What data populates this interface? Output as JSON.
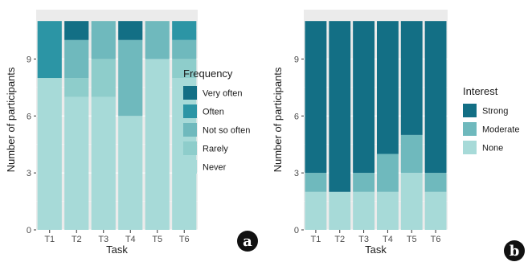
{
  "chart_data": [
    {
      "type": "bar",
      "stacked": true,
      "badge": "a",
      "xlabel": "Task",
      "ylabel": "Number of participants",
      "ylim": [
        0,
        11.6
      ],
      "yticks": [
        0,
        3,
        6,
        9
      ],
      "categories": [
        "T1",
        "T2",
        "T3",
        "T4",
        "T5",
        "T6"
      ],
      "legend": {
        "title": "Frequency",
        "placement": "right"
      },
      "series": [
        {
          "name": "Never",
          "color": "#a7dad8",
          "values": [
            8,
            7,
            7,
            6,
            9,
            8
          ]
        },
        {
          "name": "Rarely",
          "color": "#8ecdcb",
          "values": [
            0,
            1,
            2,
            0,
            0,
            1
          ]
        },
        {
          "name": "Not so often",
          "color": "#6fb9bd",
          "values": [
            0,
            2,
            2,
            4,
            2,
            1
          ]
        },
        {
          "name": "Often",
          "color": "#2c95a5",
          "values": [
            3,
            0,
            0,
            0,
            0,
            1
          ]
        },
        {
          "name": "Very often",
          "color": "#136f85",
          "values": [
            0,
            1,
            0,
            1,
            0,
            0
          ]
        }
      ]
    },
    {
      "type": "bar",
      "stacked": true,
      "badge": "b",
      "xlabel": "Task",
      "ylabel": "Number of participants",
      "ylim": [
        0,
        11.6
      ],
      "yticks": [
        0,
        3,
        6,
        9
      ],
      "categories": [
        "T1",
        "T2",
        "T3",
        "T4",
        "T5",
        "T6"
      ],
      "legend": {
        "title": "Interest",
        "placement": "right"
      },
      "series": [
        {
          "name": "None",
          "color": "#a7dad8",
          "values": [
            2,
            2,
            2,
            2,
            3,
            2
          ]
        },
        {
          "name": "Moderate",
          "color": "#6fb9bd",
          "values": [
            1,
            0,
            1,
            2,
            2,
            1
          ]
        },
        {
          "name": "Strong",
          "color": "#136f85",
          "values": [
            8,
            9,
            8,
            7,
            6,
            8
          ]
        }
      ]
    }
  ]
}
